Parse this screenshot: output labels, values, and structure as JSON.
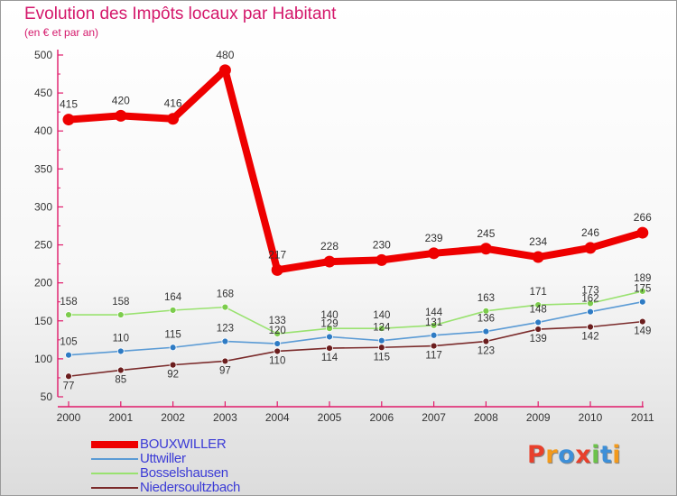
{
  "title": "Evolution des Impôts locaux par Habitant",
  "subtitle": "(en € et par an)",
  "logo": {
    "text": "Proxiti",
    "colors": [
      "#e8402c",
      "#f39a1c",
      "#3d8fd8",
      "#e8402c",
      "#6cc24a",
      "#3d8fd8",
      "#f39a1c"
    ]
  },
  "chart_data": {
    "type": "line",
    "categories": [
      "2000",
      "2001",
      "2002",
      "2003",
      "2004",
      "2005",
      "2006",
      "2007",
      "2008",
      "2009",
      "2010",
      "2011"
    ],
    "ylim": [
      50,
      500
    ],
    "yticks": [
      "50",
      "100",
      "150",
      "200",
      "250",
      "300",
      "350",
      "400",
      "450",
      "500"
    ],
    "grid": false,
    "legend_position": "bottom-left",
    "series": [
      {
        "name": "BOUXWILLER",
        "color": "#ee0000",
        "values": [
          415,
          420,
          416,
          480,
          217,
          228,
          230,
          239,
          245,
          234,
          246,
          266
        ]
      },
      {
        "name": "Uttwiller",
        "color": "#5b9bd5",
        "marker": "#2e7bc4",
        "values": [
          105,
          110,
          115,
          123,
          120,
          129,
          124,
          131,
          136,
          148,
          162,
          175
        ]
      },
      {
        "name": "Bosselshausen",
        "color": "#99e26f",
        "marker": "#7ccc4c",
        "values": [
          158,
          158,
          164,
          168,
          133,
          140,
          140,
          144,
          163,
          171,
          173,
          189
        ]
      },
      {
        "name": "Niedersoultzbach",
        "color": "#7a2a2a",
        "marker": "#6b1e1e",
        "values": [
          77,
          85,
          92,
          97,
          110,
          114,
          115,
          117,
          123,
          139,
          142,
          149
        ]
      }
    ]
  }
}
